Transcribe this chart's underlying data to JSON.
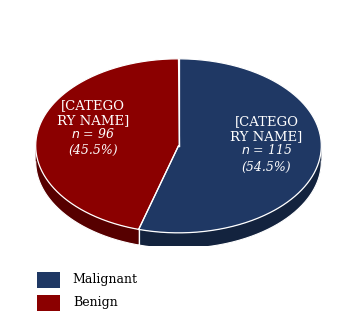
{
  "slices": [
    54.5,
    45.5
  ],
  "colors": [
    "#1f3864",
    "#8b0000"
  ],
  "legend_labels": [
    "Malignant",
    "Benign"
  ],
  "text_color": "#ffffff",
  "background_color": "#ffffff",
  "figsize": [
    3.57,
    3.16
  ],
  "dpi": 100,
  "a": 1.28,
  "b": 0.78,
  "depth": 0.14,
  "label_main": "[CATEGO\nRY NAME]",
  "mal_sublabel": "n = 115\n(54.5%)",
  "ben_sublabel": "n = 96\n(45.5%)",
  "label_fontsize": 9.5,
  "sub_fontsize": 9.0
}
